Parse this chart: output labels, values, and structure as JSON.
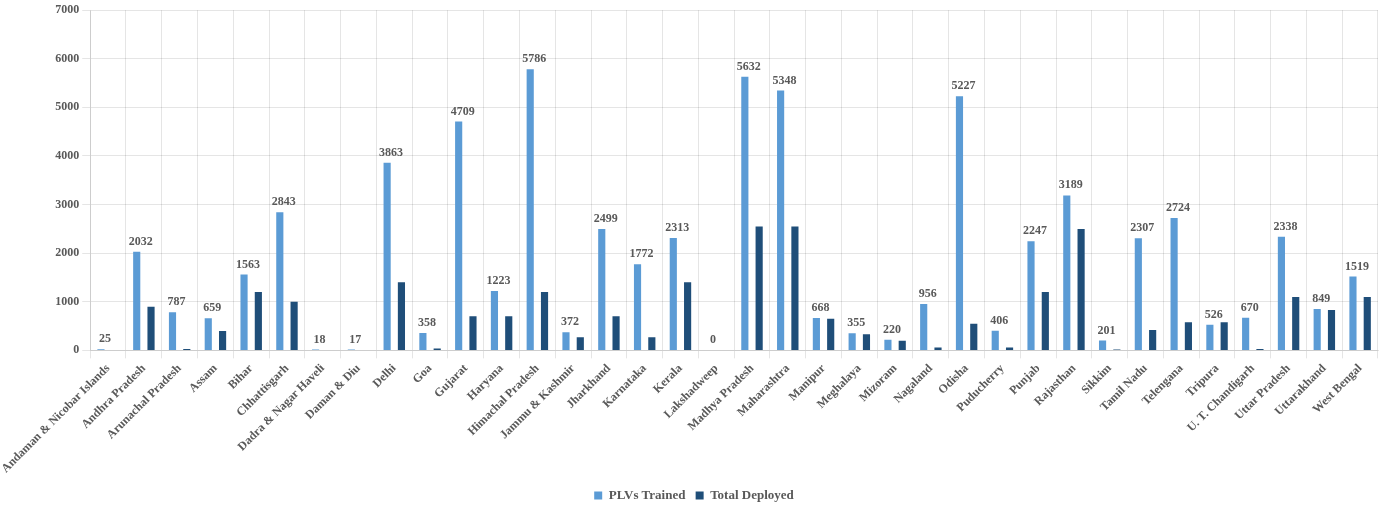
{
  "chart_data": {
    "type": "bar",
    "categories": [
      "Andaman & Nicobar Islands",
      "Andhra Pradesh",
      "Arunachal Pradesh",
      "Assam",
      "Bihar",
      "Chhattisgarh",
      "Dadra & Nagar Haveli",
      "Daman & Diu",
      "Delhi",
      "Goa",
      "Gujarat",
      "Haryana",
      "Himachal Pradesh",
      "Jammu & Kashmir",
      "Jharkhand",
      "Karnataka",
      "Kerala",
      "Lakshadweep",
      "Madhya Pradesh",
      "Maharashtra",
      "Manipur",
      "Meghalaya",
      "Mizoram",
      "Nagaland",
      "Odisha",
      "Puducherry",
      "Punjab",
      "Rajasthan",
      "Sikkim",
      "Tamil Nadu",
      "Telengana",
      "Tripura",
      "U. T. Chandigarh",
      "Uttar Pradesh",
      "Uttarakhand",
      "West Bengal"
    ],
    "series": [
      {
        "name": "PLVs Trained",
        "color": "#5b9bd5",
        "values": [
          25,
          2032,
          787,
          659,
          1563,
          2843,
          18,
          17,
          3863,
          358,
          4709,
          1223,
          5786,
          372,
          2499,
          1772,
          2313,
          0,
          5632,
          5348,
          668,
          355,
          220,
          956,
          5227,
          406,
          2247,
          3189,
          201,
          2307,
          2724,
          526,
          670,
          2338,
          849,
          1519
        ],
        "value_labels": [
          "25",
          "2032",
          "787",
          "659",
          "1563",
          "2843",
          "18",
          "17",
          "3863",
          "358",
          "4709",
          "1223",
          "5786",
          "372",
          "2499",
          "1772",
          "2313",
          "0",
          "5632",
          "5348",
          "668",
          "355",
          "220",
          "956",
          "5227",
          "406",
          "2247",
          "3189",
          "201",
          "2307",
          "2724",
          "526",
          "670",
          "2338",
          "849",
          "1519"
        ]
      },
      {
        "name": "Total Deployed",
        "color": "#1f4e79",
        "values": [
          0,
          900,
          30,
          400,
          1200,
          1000,
          0,
          0,
          1400,
          40,
          700,
          700,
          1200,
          270,
          700,
          270,
          1400,
          0,
          2550,
          2550,
          650,
          330,
          200,
          60,
          550,
          60,
          1200,
          2500,
          20,
          420,
          580,
          580,
          30,
          1100,
          830,
          1100
        ]
      }
    ],
    "ylim": [
      0,
      7000
    ],
    "yticks": [
      0,
      1000,
      2000,
      3000,
      4000,
      5000,
      6000,
      7000
    ],
    "grid": true,
    "legend": "bottom"
  }
}
